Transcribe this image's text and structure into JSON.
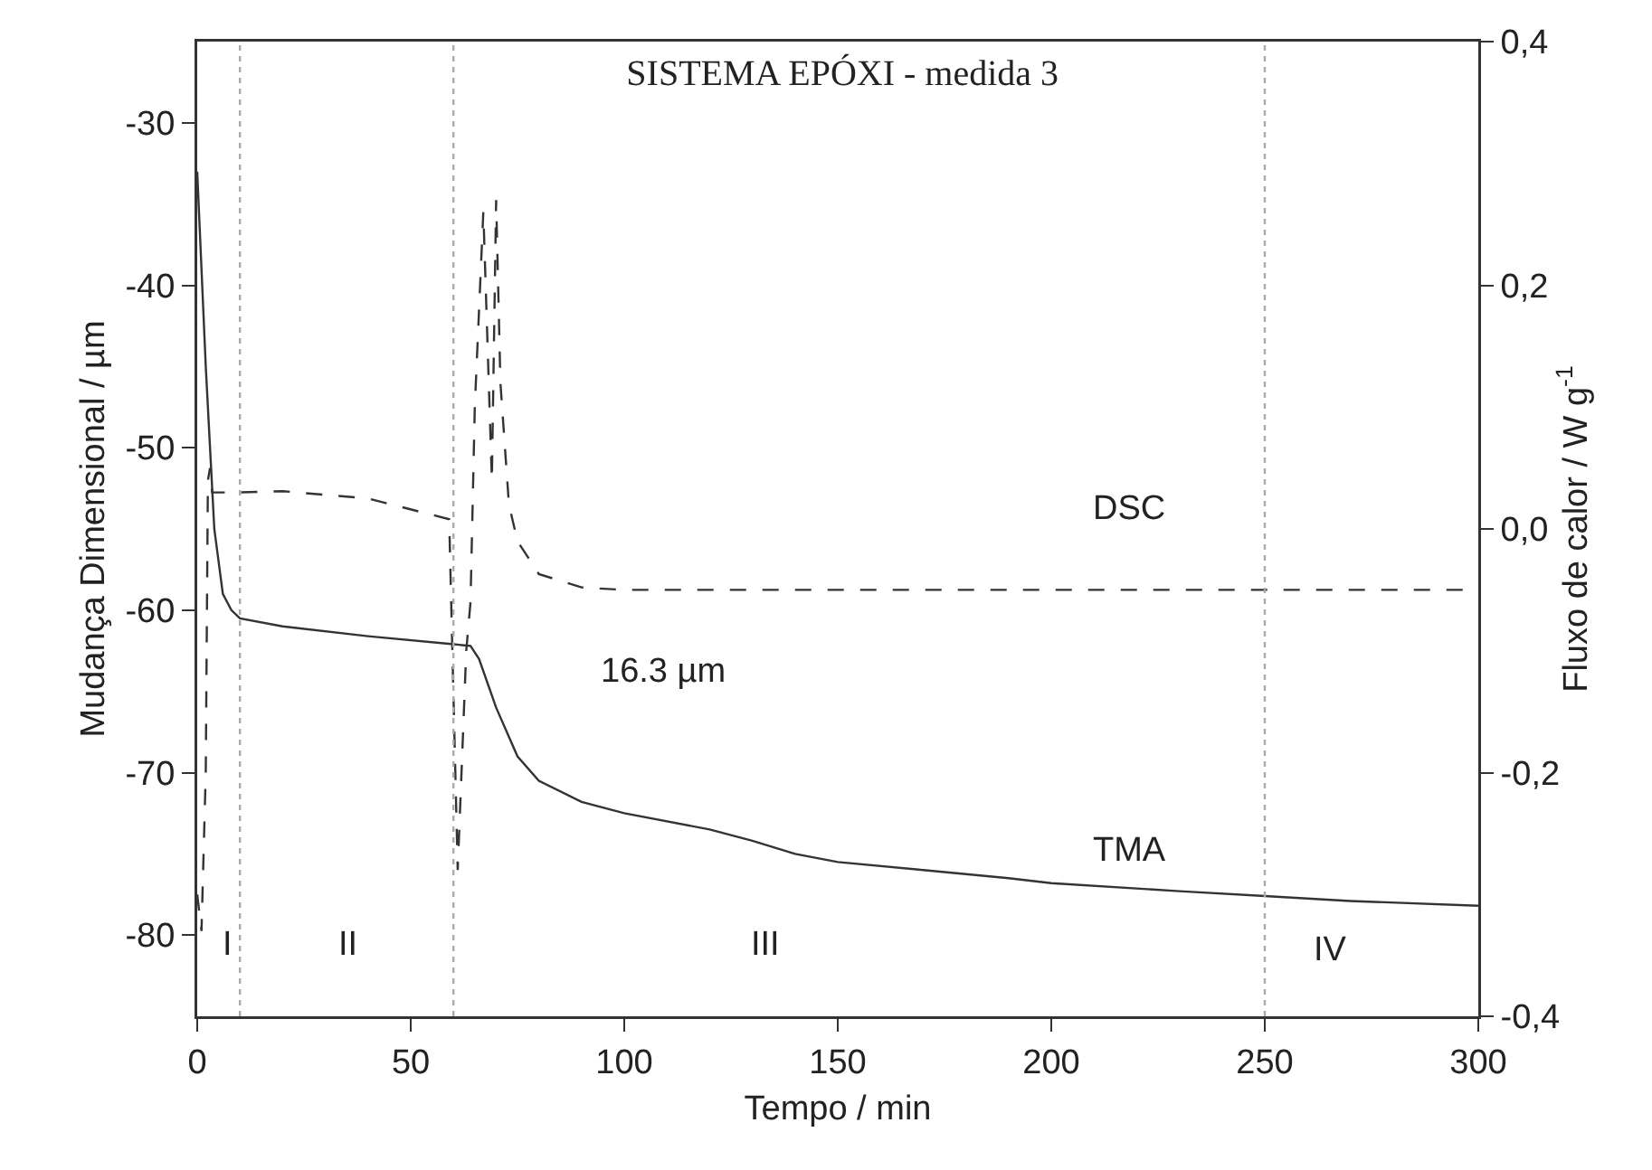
{
  "chart_data": {
    "type": "line",
    "title": "SISTEMA EPÓXI - medida 3",
    "xlabel": "Tempo / min",
    "ylabel": "Mudança Dimensional / µm",
    "y2label": "Fluxo de calor / W g$^{-1}$",
    "xlim": [
      0,
      300
    ],
    "xticks": [
      0,
      50,
      100,
      150,
      200,
      250,
      300
    ],
    "ylim": [
      -85,
      -25
    ],
    "yticks": [
      -30,
      -40,
      -50,
      -60,
      -70,
      -80
    ],
    "y2lim": [
      -0.4,
      0.4
    ],
    "y2ticks": [
      {
        "value": 0.4,
        "label": "0,4"
      },
      {
        "value": 0.2,
        "label": "0,2"
      },
      {
        "value": 0,
        "label": "0,0"
      },
      {
        "value": -0.2,
        "label": "-0,2"
      },
      {
        "value": -0.4,
        "label": "-0,4"
      }
    ],
    "grid": false,
    "marker": "none",
    "series": [
      {
        "name": "TMA",
        "color": "#333333",
        "line_style": "solid",
        "x": [
          0,
          2,
          4,
          6,
          8,
          10,
          20,
          40,
          60,
          64,
          66,
          70,
          75,
          80,
          90,
          100,
          120,
          130,
          140,
          150,
          170,
          190,
          200,
          230,
          250,
          270,
          300
        ],
        "values": [
          -33,
          -45,
          -55,
          -59,
          -60,
          -60.5,
          -61,
          -61.6,
          -62.1,
          -62.2,
          -63,
          -66,
          -69,
          -70.5,
          -71.8,
          -72.5,
          -73.5,
          -74.2,
          -75,
          -75.5,
          -76,
          -76.5,
          -76.8,
          -77.3,
          -77.6,
          -77.9,
          -78.2
        ]
      },
      {
        "name": "DSC",
        "color": "#333333",
        "line_style": "dashed",
        "axis": "y2",
        "x": [
          0,
          1,
          2,
          2.5,
          3,
          3.5,
          5,
          10,
          20,
          40,
          59,
          61,
          63,
          64,
          65,
          67,
          68,
          69,
          70,
          71,
          73,
          75,
          80,
          90,
          100,
          300
        ],
        "values": [
          -0.3,
          -0.33,
          -0.2,
          0.04,
          0.05,
          0.03,
          0.03,
          0.03,
          0.031,
          0.025,
          0.008,
          -0.28,
          -0.1,
          -0.06,
          0.1,
          0.26,
          0.15,
          0.04,
          0.27,
          0.12,
          0.02,
          -0.01,
          -0.037,
          -0.048,
          -0.05,
          -0.05
        ]
      }
    ],
    "ref_lines": [
      {
        "axis": "x",
        "value": 10,
        "color": "#aaaaaa",
        "line_style": "dotted"
      },
      {
        "axis": "x",
        "value": 60,
        "color": "#aaaaaa",
        "line_style": "dotted"
      },
      {
        "axis": "x",
        "value": 250,
        "color": "#aaaaaa",
        "line_style": "dotted"
      }
    ],
    "annotations": [
      "16.3 µm",
      "I",
      "II",
      "III",
      "IV"
    ]
  }
}
